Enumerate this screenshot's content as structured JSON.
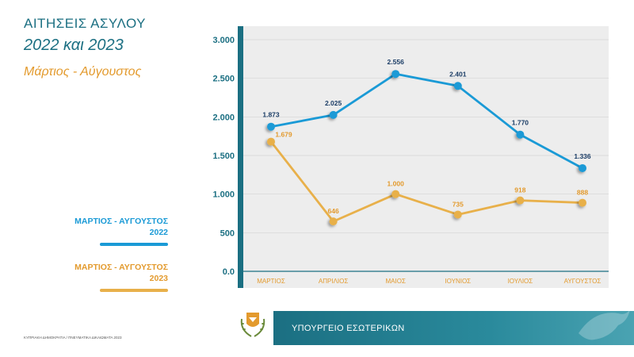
{
  "header": {
    "title": "ΑΙΤΗΣΕΙΣ ΑΣΥΛΟΥ",
    "subtitle": "2022 και 2023",
    "period": "Μάρτιος - Αύγουστος"
  },
  "legend": {
    "s2022_label": "ΜΑΡΤΙΟΣ - ΑΥΓΟΥΣΤΟΣ",
    "s2022_year": "2022",
    "s2023_label": "ΜΑΡΤΙΟΣ - ΑΥΓΟΥΣΤΟΣ",
    "s2023_year": "2023"
  },
  "chart_data": {
    "type": "line",
    "title": "ΑΙΤΗΣΕΙΣ ΑΣΥΛΟΥ",
    "categories": [
      "ΜΑΡΤΙΟΣ",
      "ΑΠΡΙΛΙΟΣ",
      "ΜΑΙΟΣ",
      "ΙΟΥΝΙΟΣ",
      "ΙΟΥΛΙΟΣ",
      "ΑΥΓΟΥΣΤΟΣ"
    ],
    "series": [
      {
        "name": "2022",
        "values": [
          1873,
          2025,
          2556,
          2401,
          1770,
          1336
        ],
        "labels": [
          "1.873",
          "2.025",
          "2.556",
          "2.401",
          "1.770",
          "1.336"
        ],
        "color": "#1a9ad6"
      },
      {
        "name": "2023",
        "values": [
          1679,
          646,
          1000,
          735,
          918,
          888
        ],
        "labels": [
          "1.679",
          "646",
          "1.000",
          "735",
          "918",
          "888"
        ],
        "color": "#e8b04a"
      }
    ],
    "yticks": [
      0,
      500,
      1000,
      1500,
      2000,
      2500,
      3000
    ],
    "ytick_labels": [
      "0.0",
      "500",
      "1.000",
      "1.500",
      "2.000",
      "2.500",
      "3.000"
    ],
    "ylim": [
      0,
      3000
    ],
    "grid": true,
    "xlabel": "",
    "ylabel": ""
  },
  "footer": {
    "note": "ΚΥΠΡΙΑΚΗ ΔΗΜΟΚΡΑΤΙΑ / ΠΝΕΥΜΑΤΙΚΑ ΔΙΚΑΙΩΜΑΤΑ 2023",
    "ministry": "ΥΠΟΥΡΓΕΙΟ ΕΣΩΤΕΡΙΚΩΝ"
  },
  "colors": {
    "teal": "#1b6f82",
    "blue": "#1a9ad6",
    "orange": "#e8b04a",
    "label_orange": "#e39a2d"
  }
}
